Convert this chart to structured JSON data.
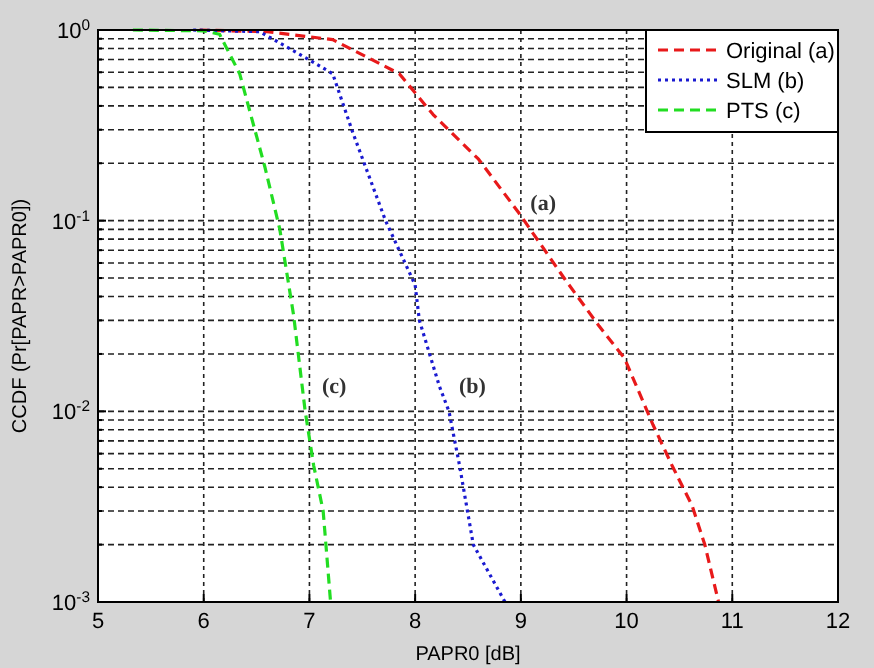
{
  "chart_data": {
    "type": "line",
    "xlabel": "PAPR0 [dB]",
    "ylabel": "CCDF (Pr[PAPR>PAPR0])",
    "log": "y",
    "grid": true,
    "legend": "top right",
    "marker": "none",
    "xlim": [
      5,
      12
    ],
    "xticks": [
      5,
      6,
      7,
      8,
      9,
      10,
      11,
      12
    ],
    "ylim": [
      0.001,
      1
    ],
    "yticks": [
      {
        "value": 0.001,
        "label": "10$^{-3}$"
      },
      {
        "value": 0.002,
        "label": null
      },
      {
        "value": 0.003,
        "label": null
      },
      {
        "value": 0.004,
        "label": null
      },
      {
        "value": 0.005,
        "label": null
      },
      {
        "value": 0.006,
        "label": null
      },
      {
        "value": 0.007,
        "label": null
      },
      {
        "value": 0.008,
        "label": null
      },
      {
        "value": 0.009,
        "label": null
      },
      {
        "value": 0.01,
        "label": "10$^{-2}$"
      },
      {
        "value": 0.02,
        "label": null
      },
      {
        "value": 0.03,
        "label": null
      },
      {
        "value": 0.04,
        "label": null
      },
      {
        "value": 0.05,
        "label": null
      },
      {
        "value": 0.06,
        "label": null
      },
      {
        "value": 0.07,
        "label": null
      },
      {
        "value": 0.08,
        "label": null
      },
      {
        "value": 0.09,
        "label": null
      },
      {
        "value": 0.1,
        "label": "10$^{-1}$"
      },
      {
        "value": 0.2,
        "label": null
      },
      {
        "value": 0.3,
        "label": null
      },
      {
        "value": 0.4,
        "label": null
      },
      {
        "value": 0.5,
        "label": null
      },
      {
        "value": 0.6,
        "label": null
      },
      {
        "value": 0.7,
        "label": null
      },
      {
        "value": 0.8,
        "label": null
      },
      {
        "value": 0.9,
        "label": null
      },
      {
        "value": 1,
        "label": "10$^{0}$"
      }
    ],
    "series": [
      {
        "name": "Original (a)",
        "color": "#e8191a",
        "line_style": "dashed",
        "x": [
          5.96,
          6.6,
          7.22,
          7.85,
          8.17,
          8.6,
          8.98,
          9.42,
          9.74,
          9.98,
          10.25,
          10.43,
          10.62,
          10.74,
          10.87
        ],
        "values": [
          1,
          0.98,
          0.89,
          0.59,
          0.36,
          0.21,
          0.11,
          0.049,
          0.028,
          0.019,
          0.0085,
          0.0052,
          0.0032,
          0.002,
          0.001
        ]
      },
      {
        "name": "SLM (b)",
        "color": "#1a1ad0",
        "line_style": "dotted",
        "x": [
          5.9,
          6.53,
          6.9,
          7.22,
          7.41,
          7.72,
          8.0,
          8.04,
          8.23,
          8.32,
          8.42,
          8.55,
          8.85
        ],
        "values": [
          1,
          0.98,
          0.75,
          0.59,
          0.29,
          0.1,
          0.046,
          0.03,
          0.0135,
          0.01,
          0.0052,
          0.002,
          0.001
        ]
      },
      {
        "name": "PTS (c)",
        "color": "#22dd22",
        "line_style": "dashed",
        "x": [
          5.33,
          6.0,
          6.15,
          6.34,
          6.58,
          6.72,
          6.85,
          6.96,
          7.04,
          7.13,
          7.2
        ],
        "values": [
          1,
          0.99,
          0.95,
          0.59,
          0.19,
          0.09,
          0.032,
          0.01,
          0.0052,
          0.003,
          0.001
        ]
      }
    ],
    "annotations": [
      "(a)",
      "(b)",
      "(c)"
    ]
  }
}
